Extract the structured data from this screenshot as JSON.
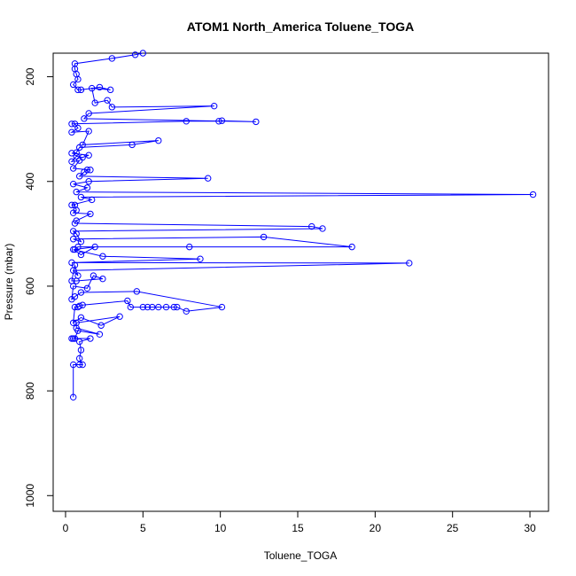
{
  "chart_data": {
    "type": "line",
    "title": "ATOM1 North_America Toluene_TOGA",
    "xlabel": "Toluene_TOGA",
    "ylabel": "Pressure (mbar)",
    "xlim": [
      -0.8,
      31.2
    ],
    "ylim": [
      1030,
      155
    ],
    "y_reversed": true,
    "grid": false,
    "xticks": [
      0,
      5,
      10,
      15,
      20,
      25,
      30
    ],
    "yticks": [
      200,
      400,
      600,
      800,
      1000
    ],
    "series": [
      {
        "color": "#0000ff",
        "marker": "open-circle",
        "points": [
          [
            0.5,
            812
          ],
          [
            0.5,
            750
          ],
          [
            0.9,
            750
          ],
          [
            1.1,
            750
          ],
          [
            0.9,
            738
          ],
          [
            1.0,
            722
          ],
          [
            0.9,
            706
          ],
          [
            1.6,
            700
          ],
          [
            0.5,
            700
          ],
          [
            0.4,
            700
          ],
          [
            0.6,
            700
          ],
          [
            0.8,
            685
          ],
          [
            2.2,
            692
          ],
          [
            0.7,
            680
          ],
          [
            0.7,
            670
          ],
          [
            3.5,
            658
          ],
          [
            2.3,
            675
          ],
          [
            1.0,
            660
          ],
          [
            0.5,
            670
          ],
          [
            0.6,
            640
          ],
          [
            0.8,
            640
          ],
          [
            0.9,
            638
          ],
          [
            1.1,
            636
          ],
          [
            4.0,
            628
          ],
          [
            4.2,
            640
          ],
          [
            5.0,
            640
          ],
          [
            5.3,
            640
          ],
          [
            5.6,
            640
          ],
          [
            6.0,
            640
          ],
          [
            6.5,
            640
          ],
          [
            7.0,
            640
          ],
          [
            7.2,
            640
          ],
          [
            7.8,
            648
          ],
          [
            10.1,
            640
          ],
          [
            4.6,
            610
          ],
          [
            1.0,
            612
          ],
          [
            0.6,
            620
          ],
          [
            0.4,
            625
          ],
          [
            0.5,
            600
          ],
          [
            1.4,
            604
          ],
          [
            1.8,
            580
          ],
          [
            2.4,
            586
          ],
          [
            0.7,
            590
          ],
          [
            0.4,
            590
          ],
          [
            0.6,
            560
          ],
          [
            0.8,
            580
          ],
          [
            0.5,
            570
          ],
          [
            22.2,
            556
          ],
          [
            0.4,
            555
          ],
          [
            8.7,
            548
          ],
          [
            2.4,
            543
          ],
          [
            0.5,
            530
          ],
          [
            1.0,
            540
          ],
          [
            1.9,
            525
          ],
          [
            0.6,
            530
          ],
          [
            0.8,
            525
          ],
          [
            8.0,
            525
          ],
          [
            18.5,
            525
          ],
          [
            12.8,
            506
          ],
          [
            0.5,
            510
          ],
          [
            1.0,
            515
          ],
          [
            0.7,
            500
          ],
          [
            0.5,
            495
          ],
          [
            16.6,
            490
          ],
          [
            15.9,
            486
          ],
          [
            0.6,
            480
          ],
          [
            0.7,
            475
          ],
          [
            1.6,
            462
          ],
          [
            0.5,
            460
          ],
          [
            0.7,
            455
          ],
          [
            0.6,
            445
          ],
          [
            0.4,
            445
          ],
          [
            1.7,
            435
          ],
          [
            1.0,
            430
          ],
          [
            30.2,
            425
          ],
          [
            0.7,
            420
          ],
          [
            1.4,
            412
          ],
          [
            0.5,
            405
          ],
          [
            1.5,
            400
          ],
          [
            9.2,
            394
          ],
          [
            0.9,
            390
          ],
          [
            1.2,
            382
          ],
          [
            1.4,
            378
          ],
          [
            1.6,
            378
          ],
          [
            0.5,
            375
          ],
          [
            0.9,
            360
          ],
          [
            0.4,
            362
          ],
          [
            0.7,
            352
          ],
          [
            1.1,
            354
          ],
          [
            1.5,
            350
          ],
          [
            0.4,
            346
          ],
          [
            0.7,
            345
          ],
          [
            0.9,
            335
          ],
          [
            4.3,
            330
          ],
          [
            6.0,
            322
          ],
          [
            1.1,
            330
          ],
          [
            1.5,
            304
          ],
          [
            0.4,
            306
          ],
          [
            0.8,
            298
          ],
          [
            0.6,
            290
          ],
          [
            0.4,
            290
          ],
          [
            7.8,
            285
          ],
          [
            9.9,
            285
          ],
          [
            10.1,
            284
          ],
          [
            12.3,
            286
          ],
          [
            1.2,
            280
          ],
          [
            1.5,
            270
          ],
          [
            9.6,
            256
          ],
          [
            3.0,
            258
          ],
          [
            2.7,
            245
          ],
          [
            1.9,
            250
          ],
          [
            1.7,
            222
          ],
          [
            2.9,
            225
          ],
          [
            2.2,
            220
          ],
          [
            1.0,
            225
          ],
          [
            0.8,
            225
          ],
          [
            0.5,
            215
          ],
          [
            0.8,
            205
          ],
          [
            0.7,
            195
          ],
          [
            0.6,
            185
          ],
          [
            0.6,
            175
          ],
          [
            3.0,
            165
          ],
          [
            4.5,
            158
          ],
          [
            5.0,
            155
          ]
        ]
      }
    ]
  }
}
